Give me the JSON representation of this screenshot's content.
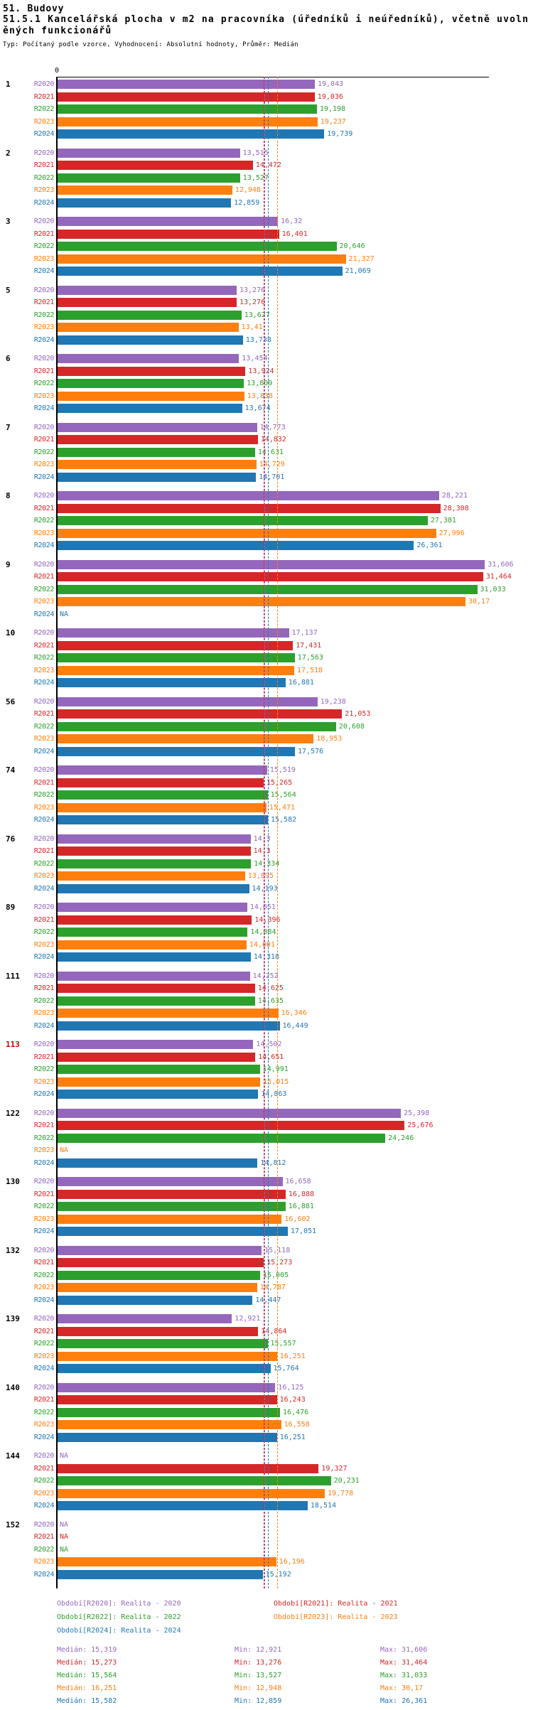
{
  "title": {
    "line1": "51. Budovy",
    "line2": "51.5.1 Kancelářská plocha v m2 na pracovníka (úředníků i neúředníků), včetně uvolněných funkcionářů",
    "line3": "Typ: Počítaný podle vzorce, Vyhodnocení: Absolutní hodnoty, Průměr: Medián"
  },
  "chart_data": {
    "type": "bar",
    "orientation": "horizontal",
    "zero_tick_label": "0",
    "na_text": "NA",
    "decimal_separator": ",",
    "axis_range": [
      0,
      32
    ],
    "grid": false,
    "series": [
      {
        "key": "R2020",
        "name": "Realita - 2020",
        "color": "#9467bd"
      },
      {
        "key": "R2021",
        "name": "Realita - 2021",
        "color": "#d62728"
      },
      {
        "key": "R2022",
        "name": "Realita - 2022",
        "color": "#2ca02c"
      },
      {
        "key": "R2023",
        "name": "Realita - 2023",
        "color": "#ff7f0e"
      },
      {
        "key": "R2024",
        "name": "Realita - 2024",
        "color": "#1f77b4"
      }
    ],
    "groups": [
      {
        "label": "1",
        "highlight": false,
        "values": [
          "19,043",
          "19,036",
          "19,198",
          "19,237",
          "19,739"
        ]
      },
      {
        "label": "2",
        "highlight": false,
        "values": [
          "13,515",
          "14,472",
          "13,527",
          "12,948",
          "12,859"
        ]
      },
      {
        "label": "3",
        "highlight": false,
        "values": [
          "16,32",
          "16,401",
          "20,646",
          "21,327",
          "21,069"
        ]
      },
      {
        "label": "5",
        "highlight": false,
        "values": [
          "13,276",
          "13,276",
          "13,627",
          "13,41",
          "13,738"
        ]
      },
      {
        "label": "6",
        "highlight": false,
        "values": [
          "13,454",
          "13,924",
          "13,809",
          "13,838",
          "13,674"
        ]
      },
      {
        "label": "7",
        "highlight": false,
        "values": [
          "14,773",
          "14,832",
          "14,631",
          "14,729",
          "14,701"
        ]
      },
      {
        "label": "8",
        "highlight": false,
        "values": [
          "28,221",
          "28,308",
          "27,381",
          "27,996",
          "26,361"
        ]
      },
      {
        "label": "9",
        "highlight": false,
        "values": [
          "31,606",
          "31,464",
          "31,033",
          "30,17",
          "NA"
        ]
      },
      {
        "label": "10",
        "highlight": false,
        "values": [
          "17,137",
          "17,431",
          "17,563",
          "17,518",
          "16,881"
        ]
      },
      {
        "label": "56",
        "highlight": false,
        "values": [
          "19,238",
          "21,053",
          "20,608",
          "18,953",
          "17,576"
        ]
      },
      {
        "label": "74",
        "highlight": false,
        "values": [
          "15,519",
          "15,265",
          "15,564",
          "15,471",
          "15,582"
        ]
      },
      {
        "label": "76",
        "highlight": false,
        "values": [
          "14,3",
          "14,3",
          "14,334",
          "13,895",
          "14,193"
        ]
      },
      {
        "label": "89",
        "highlight": false,
        "values": [
          "14,051",
          "14,396",
          "14,084",
          "14,001",
          "14,318"
        ]
      },
      {
        "label": "111",
        "highlight": false,
        "values": [
          "14,252",
          "14,625",
          "14,635",
          "16,346",
          "16,449"
        ]
      },
      {
        "label": "113",
        "highlight": true,
        "values": [
          "14,502",
          "14,651",
          "14,991",
          "15,015",
          "14,863"
        ]
      },
      {
        "label": "122",
        "highlight": false,
        "values": [
          "25,398",
          "25,676",
          "24,246",
          "NA",
          "14,812"
        ]
      },
      {
        "label": "130",
        "highlight": false,
        "values": [
          "16,658",
          "16,888",
          "16,881",
          "16,602",
          "17,051"
        ]
      },
      {
        "label": "132",
        "highlight": false,
        "values": [
          "15,118",
          "15,273",
          "15,005",
          "14,787",
          "14,447"
        ]
      },
      {
        "label": "139",
        "highlight": false,
        "values": [
          "12,921",
          "14,864",
          "15,557",
          "16,251",
          "15,764"
        ]
      },
      {
        "label": "140",
        "highlight": false,
        "values": [
          "16,125",
          "16,243",
          "16,476",
          "16,558",
          "16,251"
        ]
      },
      {
        "label": "144",
        "highlight": false,
        "values": [
          "NA",
          "19,327",
          "20,231",
          "19,778",
          "18,514"
        ]
      },
      {
        "label": "152",
        "highlight": false,
        "values": [
          "NA",
          "NA",
          "NA",
          "16,196",
          "15,192"
        ]
      }
    ],
    "median_lines": [
      "15,319",
      "15,273",
      "15,564",
      "16,251",
      "15,582"
    ],
    "legend_position": "bottom"
  },
  "legend": {
    "items": [
      {
        "label": "Období[R2020]: Realita - 2020",
        "color": "#9467bd"
      },
      {
        "label": "Období[R2021]: Realita - 2021",
        "color": "#d62728"
      },
      {
        "label": "Období[R2022]: Realita - 2022",
        "color": "#2ca02c"
      },
      {
        "label": "Období[R2023]: Realita - 2023",
        "color": "#ff7f0e"
      },
      {
        "label": "Období[R2024]: Realita - 2024",
        "color": "#1f77b4"
      }
    ]
  },
  "stats": {
    "rows": [
      {
        "median": "Medián: 15,319",
        "min": "Min: 12,921",
        "max": "Max: 31,606",
        "color": "#9467bd"
      },
      {
        "median": "Medián: 15,273",
        "min": "Min: 13,276",
        "max": "Max: 31,464",
        "color": "#d62728"
      },
      {
        "median": "Medián: 15,564",
        "min": "Min: 13,527",
        "max": "Max: 31,033",
        "color": "#2ca02c"
      },
      {
        "median": "Medián: 16,251",
        "min": "Min: 12,948",
        "max": "Max: 30,17",
        "color": "#ff7f0e"
      },
      {
        "median": "Medián: 15,582",
        "min": "Min: 12,859",
        "max": "Max: 26,361",
        "color": "#1f77b4"
      }
    ]
  }
}
